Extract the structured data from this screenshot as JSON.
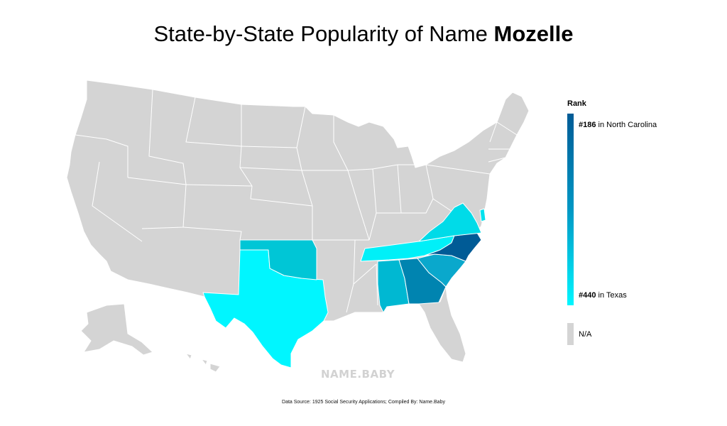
{
  "title": {
    "prefix": "State-by-State Popularity of Name",
    "name": "Mozelle"
  },
  "legend": {
    "title": "Rank",
    "top": {
      "rank": "#186",
      "text": "in North Carolina"
    },
    "bottom": {
      "rank": "#440",
      "text": "in Texas"
    },
    "na_label": "N/A",
    "gradient_colors": [
      "#005b96",
      "#00f6ff"
    ],
    "na_color": "#d4d4d4"
  },
  "watermark": "NAME.BABY",
  "source": "Data Source: 1925 Social Security Applications; Compiled By: Name.Baby",
  "colors": {
    "north_carolina": "#005b96",
    "georgia": "#0084b0",
    "south_carolina": "#0aa8cc",
    "alabama": "#00b8d2",
    "oklahoma": "#00c6d6",
    "virginia": "#00dbe8",
    "delaware": "#00e2ee",
    "tennessee": "#00f0f8",
    "texas": "#00f6ff",
    "na_states": "#d4d4d4"
  }
}
